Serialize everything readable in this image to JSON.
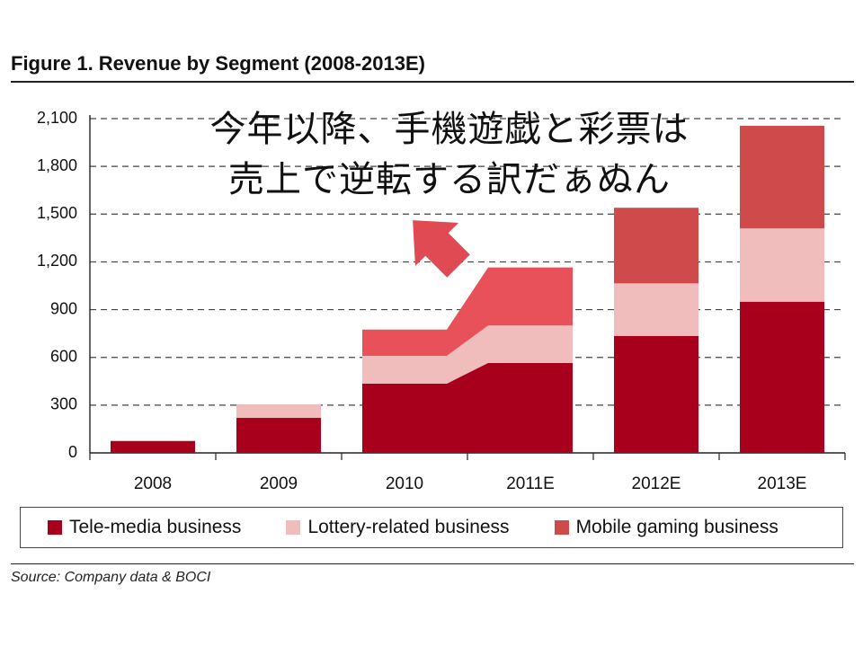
{
  "figure": {
    "title": "Figure 1. Revenue by Segment (2008-2013E)",
    "source": "Source: Company data & BOCI"
  },
  "callout": {
    "line1": "今年以降、手機遊戯と彩票は",
    "line2": "売上で逆転する訳だぁぬん"
  },
  "colors": {
    "tele": "#a8001c",
    "lottery": "#f0bcbc",
    "mobile": "#cf4b4b",
    "mobile_highlight": "#e8505a",
    "arrow": "#e04a52",
    "grid": "#444444"
  },
  "chart_data": {
    "type": "bar",
    "stacked": true,
    "title": "Figure 1. Revenue by Segment (2008-2013E)",
    "categories": [
      "2008",
      "2009",
      "2010",
      "2011E",
      "2012E",
      "2013E"
    ],
    "series": [
      {
        "name": "Tele-media business",
        "values": [
          75,
          220,
          435,
          565,
          735,
          950
        ]
      },
      {
        "name": "Lottery-related business",
        "values": [
          0,
          85,
          175,
          235,
          330,
          460
        ]
      },
      {
        "name": "Mobile gaming business",
        "values": [
          0,
          0,
          165,
          365,
          475,
          645
        ]
      }
    ],
    "ylim": [
      0,
      2100
    ],
    "yticks": [
      "0",
      "300",
      "600",
      "900",
      "1,200",
      "1,500",
      "1,800",
      "2,100"
    ],
    "ytick_values": [
      0,
      300,
      600,
      900,
      1200,
      1500,
      1800,
      2100
    ],
    "grid": true,
    "legend_position": "bottom",
    "xlabel": "",
    "ylabel": ""
  }
}
